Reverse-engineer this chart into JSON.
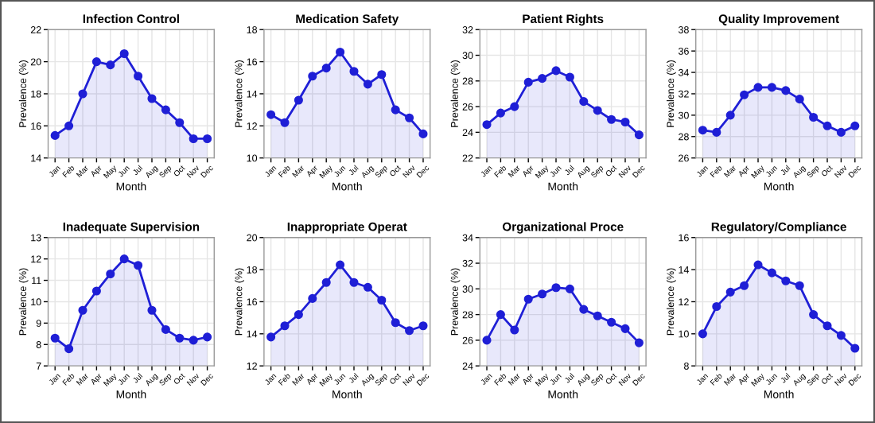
{
  "chart_data": [
    {
      "type": "area",
      "title": "Infection Control",
      "xlabel": "Month",
      "ylabel": "Prevalence (%)",
      "categories": [
        "Jan",
        "Feb",
        "Mar",
        "Apr",
        "May",
        "Jun",
        "Jul",
        "Aug",
        "Sep",
        "Oct",
        "Nov",
        "Dec"
      ],
      "series": [
        {
          "color": "#1f1fd6",
          "values": [
            15.4,
            16,
            18,
            20,
            19.8,
            20.5,
            19.1,
            17.7,
            17,
            16.2,
            15.2,
            15.2
          ]
        }
      ],
      "ylim": [
        14,
        22
      ],
      "yticks": [
        14,
        16,
        18,
        20,
        22
      ],
      "grid": true,
      "marker": "circle"
    },
    {
      "type": "area",
      "title": "Medication Safety",
      "xlabel": "Month",
      "ylabel": "Prevalence (%)",
      "categories": [
        "Jan",
        "Feb",
        "Mar",
        "Apr",
        "May",
        "Jun",
        "Jul",
        "Aug",
        "Sep",
        "Oct",
        "Nov",
        "Dec"
      ],
      "series": [
        {
          "color": "#1f1fd6",
          "values": [
            12.7,
            12.2,
            13.6,
            15.1,
            15.6,
            16.6,
            15.4,
            14.6,
            15.2,
            13,
            12.5,
            11.5
          ]
        }
      ],
      "ylim": [
        10,
        18
      ],
      "yticks": [
        10,
        12,
        14,
        16,
        18
      ],
      "grid": true,
      "marker": "circle"
    },
    {
      "type": "area",
      "title": "Patient Rights",
      "xlabel": "Month",
      "ylabel": "Prevalence (%)",
      "categories": [
        "Jan",
        "Feb",
        "Mar",
        "Apr",
        "May",
        "Jun",
        "Jul",
        "Aug",
        "Sep",
        "Oct",
        "Nov",
        "Dec"
      ],
      "series": [
        {
          "color": "#1f1fd6",
          "values": [
            24.6,
            25.5,
            26,
            27.9,
            28.2,
            28.8,
            28.3,
            26.4,
            25.7,
            25,
            24.8,
            23.8
          ]
        }
      ],
      "ylim": [
        22,
        32
      ],
      "yticks": [
        22,
        24,
        26,
        28,
        30,
        32
      ],
      "grid": true,
      "marker": "circle"
    },
    {
      "type": "area",
      "title": "Quality Improvement",
      "xlabel": "Month",
      "ylabel": "Prevalence (%)",
      "categories": [
        "Jan",
        "Feb",
        "Mar",
        "Apr",
        "May",
        "Jun",
        "Jul",
        "Aug",
        "Sep",
        "Oct",
        "Nov",
        "Dec"
      ],
      "series": [
        {
          "color": "#1f1fd6",
          "values": [
            28.6,
            28.4,
            30,
            31.9,
            32.6,
            32.6,
            32.3,
            31.5,
            29.8,
            29,
            28.4,
            29
          ]
        }
      ],
      "ylim": [
        26,
        38
      ],
      "yticks": [
        26,
        28,
        30,
        32,
        34,
        36,
        38
      ],
      "grid": true,
      "marker": "circle"
    },
    {
      "type": "area",
      "title": "Inadequate Supervision",
      "xlabel": "Month",
      "ylabel": "Prevalence (%)",
      "categories": [
        "Jan",
        "Feb",
        "Mar",
        "Apr",
        "May",
        "Jun",
        "Jul",
        "Aug",
        "Sep",
        "Oct",
        "Nov",
        "Dec"
      ],
      "series": [
        {
          "color": "#1f1fd6",
          "values": [
            8.3,
            7.8,
            9.6,
            10.5,
            11.3,
            12,
            11.7,
            9.6,
            8.7,
            8.3,
            8.2,
            8.35
          ]
        }
      ],
      "ylim": [
        7,
        13
      ],
      "yticks": [
        7,
        8,
        9,
        10,
        11,
        12,
        13
      ],
      "grid": true,
      "marker": "circle"
    },
    {
      "type": "area",
      "title": "Inappropriate Operat",
      "xlabel": "Month",
      "ylabel": "Prevalence (%)",
      "categories": [
        "Jan",
        "Feb",
        "Mar",
        "Apr",
        "May",
        "Jun",
        "Jul",
        "Aug",
        "Sep",
        "Oct",
        "Nov",
        "Dec"
      ],
      "series": [
        {
          "color": "#1f1fd6",
          "values": [
            13.8,
            14.5,
            15.2,
            16.2,
            17.2,
            18.3,
            17.2,
            16.9,
            16.1,
            14.7,
            14.2,
            14.5
          ]
        }
      ],
      "ylim": [
        12,
        20
      ],
      "yticks": [
        12,
        14,
        16,
        18,
        20
      ],
      "grid": true,
      "marker": "circle"
    },
    {
      "type": "area",
      "title": "Organizational Proce",
      "xlabel": "Month",
      "ylabel": "Prevalence (%)",
      "categories": [
        "Jan",
        "Feb",
        "Mar",
        "Apr",
        "May",
        "Jun",
        "Jul",
        "Aug",
        "Sep",
        "Oct",
        "Nov",
        "Dec"
      ],
      "series": [
        {
          "color": "#1f1fd6",
          "values": [
            26,
            28,
            26.8,
            29.2,
            29.6,
            30.1,
            30,
            28.4,
            27.9,
            27.4,
            26.9,
            25.8
          ]
        }
      ],
      "ylim": [
        24,
        34
      ],
      "yticks": [
        24,
        26,
        28,
        30,
        32,
        34
      ],
      "grid": true,
      "marker": "circle"
    },
    {
      "type": "area",
      "title": "Regulatory/Compliance",
      "xlabel": "Month",
      "ylabel": "Prevalence (%)",
      "categories": [
        "Jan",
        "Feb",
        "Mar",
        "Apr",
        "May",
        "Jun",
        "Jul",
        "Aug",
        "Sep",
        "Oct",
        "Nov",
        "Dec"
      ],
      "series": [
        {
          "color": "#1f1fd6",
          "values": [
            10,
            11.7,
            12.6,
            13,
            14.3,
            13.8,
            13.3,
            13,
            11.2,
            10.5,
            9.9,
            9.1
          ]
        }
      ],
      "ylim": [
        8,
        16
      ],
      "yticks": [
        8,
        10,
        12,
        14,
        16
      ],
      "grid": true,
      "marker": "circle"
    }
  ]
}
